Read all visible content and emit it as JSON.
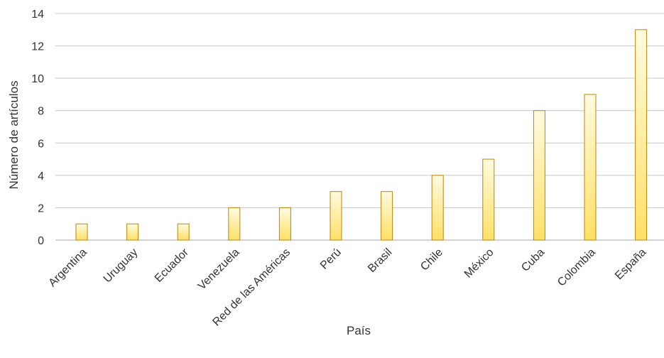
{
  "chart_data": {
    "type": "bar",
    "categories": [
      "Argentina",
      "Uruguay",
      "Ecuador",
      "Venezuela",
      "Red de las Américas",
      "Perú",
      "Brasil",
      "Chile",
      "México",
      "Cuba",
      "Colombia",
      "España"
    ],
    "values": [
      1,
      1,
      1,
      2,
      2,
      3,
      3,
      4,
      5,
      8,
      9,
      13
    ],
    "title": "",
    "xlabel": "País",
    "ylabel": "Número de artículos",
    "ylim": [
      0,
      14
    ],
    "yticks": [
      0,
      2,
      4,
      6,
      8,
      10,
      12,
      14
    ],
    "grid": true,
    "legend": "none",
    "colors": {
      "bar_top": "#fffbe0",
      "bar_bottom": "#ffe066",
      "bar_stroke": "#b8860b",
      "grid": "#c8c8c8",
      "text": "#333333"
    }
  }
}
